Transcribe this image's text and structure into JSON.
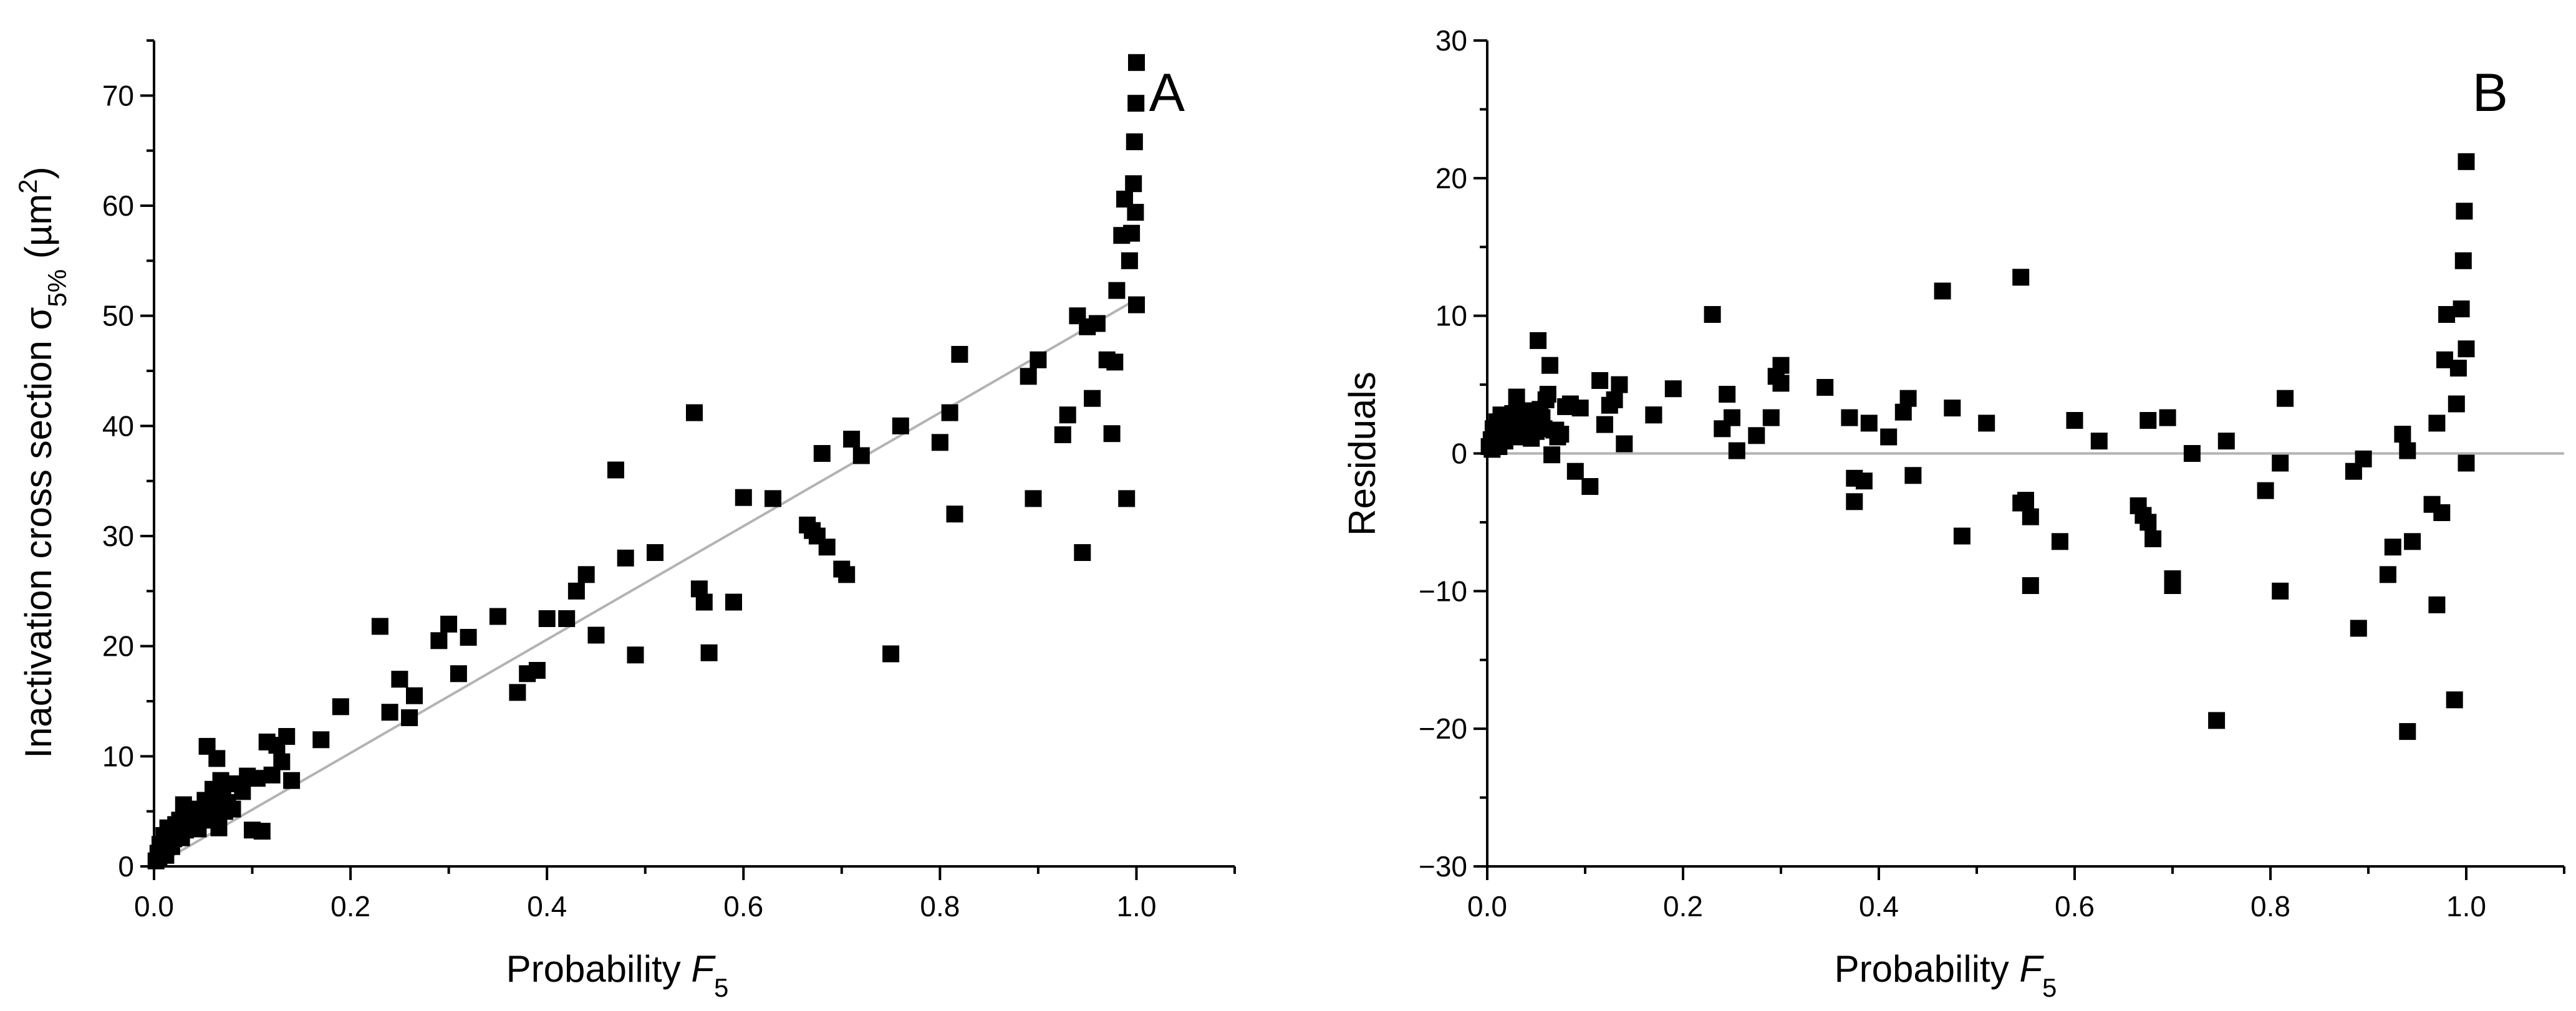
{
  "chart_data": [
    {
      "type": "scatter",
      "panel_label": "A",
      "ylabel": {
        "main": "Inactivation cross section σ",
        "sub": "5%",
        "unit_open": " (µm",
        "sup": "2",
        "unit_close": ")"
      },
      "xlabel": {
        "main": "Probability ",
        "italic": "F",
        "sub": "5"
      },
      "xlim": [
        0,
        1.1
      ],
      "ylim": [
        0,
        75
      ],
      "x_ticks": [
        0.0,
        0.2,
        0.4,
        0.6,
        0.8,
        1.0
      ],
      "x_tick_labels": [
        "0.0",
        "0.2",
        "0.4",
        "0.6",
        "0.8",
        "1.0"
      ],
      "y_ticks": [
        0,
        10,
        20,
        30,
        40,
        50,
        60,
        70
      ],
      "y_tick_labels": [
        "0",
        "10",
        "20",
        "30",
        "40",
        "50",
        "60",
        "70"
      ],
      "colors": {
        "marker": "#000000",
        "fit_line": "#b3b3b3",
        "axis": "#000000"
      },
      "fit_line": {
        "x": [
          0,
          1.0
        ],
        "y": [
          0,
          51.5
        ]
      },
      "series": [
        {
          "points": [
            [
              0.002,
              0.5
            ],
            [
              0.004,
              1.2
            ],
            [
              0.005,
              0.8
            ],
            [
              0.006,
              2.0
            ],
            [
              0.008,
              1.5
            ],
            [
              0.01,
              2.8
            ],
            [
              0.012,
              1.0
            ],
            [
              0.014,
              3.5
            ],
            [
              0.016,
              2.2
            ],
            [
              0.018,
              1.8
            ],
            [
              0.02,
              2.5
            ],
            [
              0.022,
              3.8
            ],
            [
              0.024,
              3.0
            ],
            [
              0.026,
              4.2
            ],
            [
              0.028,
              2.6
            ],
            [
              0.03,
              5.6
            ],
            [
              0.032,
              3.3
            ],
            [
              0.035,
              4.0
            ],
            [
              0.038,
              3.6
            ],
            [
              0.04,
              5.2
            ],
            [
              0.042,
              4.5
            ],
            [
              0.045,
              3.4
            ],
            [
              0.048,
              5.0
            ],
            [
              0.05,
              4.2
            ],
            [
              0.052,
              6.0
            ],
            [
              0.054,
              10.9
            ],
            [
              0.056,
              5.5
            ],
            [
              0.058,
              4.8
            ],
            [
              0.06,
              7.0
            ],
            [
              0.062,
              6.5
            ],
            [
              0.064,
              9.8
            ],
            [
              0.066,
              3.5
            ],
            [
              0.068,
              7.8
            ],
            [
              0.07,
              6.5
            ],
            [
              0.072,
              5.0
            ],
            [
              0.075,
              5.8
            ],
            [
              0.08,
              5.2
            ],
            [
              0.085,
              7.5
            ],
            [
              0.09,
              6.8
            ],
            [
              0.095,
              8.2
            ],
            [
              0.1,
              3.3
            ],
            [
              0.105,
              8.0
            ],
            [
              0.11,
              3.2
            ],
            [
              0.115,
              11.3
            ],
            [
              0.12,
              8.3
            ],
            [
              0.125,
              11.0
            ],
            [
              0.13,
              9.5
            ],
            [
              0.135,
              11.8
            ],
            [
              0.14,
              7.8
            ],
            [
              0.17,
              11.5
            ],
            [
              0.19,
              14.5
            ],
            [
              0.23,
              21.8
            ],
            [
              0.24,
              14.0
            ],
            [
              0.25,
              17.0
            ],
            [
              0.26,
              13.5
            ],
            [
              0.265,
              15.5
            ],
            [
              0.29,
              20.5
            ],
            [
              0.3,
              22.0
            ],
            [
              0.31,
              17.5
            ],
            [
              0.32,
              20.8
            ],
            [
              0.35,
              22.7
            ],
            [
              0.37,
              15.8
            ],
            [
              0.38,
              17.5
            ],
            [
              0.39,
              17.8
            ],
            [
              0.4,
              22.5
            ],
            [
              0.42,
              22.5
            ],
            [
              0.43,
              25.0
            ],
            [
              0.44,
              26.5
            ],
            [
              0.45,
              21.0
            ],
            [
              0.47,
              36.0
            ],
            [
              0.48,
              28.0
            ],
            [
              0.49,
              19.2
            ],
            [
              0.51,
              28.5
            ],
            [
              0.55,
              41.2
            ],
            [
              0.555,
              25.2
            ],
            [
              0.56,
              24.0
            ],
            [
              0.565,
              19.4
            ],
            [
              0.59,
              24.0
            ],
            [
              0.6,
              33.5
            ],
            [
              0.63,
              33.4
            ],
            [
              0.665,
              31.0
            ],
            [
              0.67,
              30.5
            ],
            [
              0.675,
              30.0
            ],
            [
              0.68,
              37.5
            ],
            [
              0.685,
              29.0
            ],
            [
              0.7,
              27.0
            ],
            [
              0.705,
              26.5
            ],
            [
              0.71,
              38.8
            ],
            [
              0.72,
              37.3
            ],
            [
              0.75,
              19.3
            ],
            [
              0.76,
              40.0
            ],
            [
              0.8,
              38.5
            ],
            [
              0.81,
              41.2
            ],
            [
              0.815,
              32.0
            ],
            [
              0.82,
              46.5
            ],
            [
              0.89,
              44.5
            ],
            [
              0.895,
              33.4
            ],
            [
              0.9,
              46.0
            ],
            [
              0.925,
              39.2
            ],
            [
              0.93,
              41.0
            ],
            [
              0.94,
              50.0
            ],
            [
              0.945,
              28.5
            ],
            [
              0.95,
              49.0
            ],
            [
              0.955,
              42.5
            ],
            [
              0.96,
              49.3
            ],
            [
              0.97,
              46.0
            ],
            [
              0.975,
              39.3
            ],
            [
              0.978,
              45.8
            ],
            [
              0.98,
              52.3
            ],
            [
              0.985,
              57.3
            ],
            [
              0.988,
              60.6
            ],
            [
              0.99,
              33.4
            ],
            [
              0.993,
              55.0
            ],
            [
              0.995,
              57.5
            ],
            [
              0.997,
              62.0
            ],
            [
              0.998,
              65.8
            ],
            [
              0.999,
              59.4
            ],
            [
              0.9995,
              69.3
            ],
            [
              1.0,
              73.0
            ],
            [
              1.0,
              51.0
            ]
          ]
        }
      ]
    },
    {
      "type": "scatter",
      "panel_label": "B",
      "ylabel": {
        "main": "Residuals"
      },
      "xlabel": {
        "main": "Probability ",
        "italic": "F",
        "sub": "5"
      },
      "xlim": [
        0,
        1.1
      ],
      "ylim": [
        -30,
        30
      ],
      "x_ticks": [
        0.0,
        0.2,
        0.4,
        0.6,
        0.8,
        1.0
      ],
      "x_tick_labels": [
        "0.0",
        "0.2",
        "0.4",
        "0.6",
        "0.8",
        "1.0"
      ],
      "y_ticks": [
        -30,
        -20,
        -10,
        0,
        10,
        20,
        30
      ],
      "y_tick_labels": [
        "−30",
        "−20",
        "−10",
        "0",
        "10",
        "20",
        "30"
      ],
      "colors": {
        "marker": "#000000",
        "zero_line": "#b3b3b3",
        "axis": "#000000"
      },
      "zero_line": {
        "y": 0
      },
      "series": [
        {
          "points": [
            [
              0.002,
              0.5
            ],
            [
              0.004,
              1.0
            ],
            [
              0.005,
              0.3
            ],
            [
              0.006,
              1.8
            ],
            [
              0.008,
              1.2
            ],
            [
              0.01,
              2.3
            ],
            [
              0.012,
              0.5
            ],
            [
              0.014,
              2.8
            ],
            [
              0.016,
              1.5
            ],
            [
              0.018,
              0.9
            ],
            [
              0.02,
              1.5
            ],
            [
              0.022,
              2.7
            ],
            [
              0.024,
              1.8
            ],
            [
              0.026,
              2.9
            ],
            [
              0.028,
              1.2
            ],
            [
              0.03,
              4.1
            ],
            [
              0.032,
              1.6
            ],
            [
              0.035,
              2.2
            ],
            [
              0.038,
              1.6
            ],
            [
              0.04,
              3.1
            ],
            [
              0.042,
              2.3
            ],
            [
              0.045,
              1.1
            ],
            [
              0.048,
              2.5
            ],
            [
              0.05,
              1.6
            ],
            [
              0.052,
              8.2
            ],
            [
              0.054,
              3.2
            ],
            [
              0.056,
              2.6
            ],
            [
              0.058,
              1.8
            ],
            [
              0.06,
              3.9
            ],
            [
              0.062,
              4.3
            ],
            [
              0.064,
              6.4
            ],
            [
              0.066,
              -0.1
            ],
            [
              0.068,
              1.7
            ],
            [
              0.07,
              1.7
            ],
            [
              0.072,
              1.2
            ],
            [
              0.075,
              1.4
            ],
            [
              0.08,
              3.4
            ],
            [
              0.085,
              3.6
            ],
            [
              0.09,
              -1.3
            ],
            [
              0.095,
              3.3
            ],
            [
              0.105,
              -2.4
            ],
            [
              0.115,
              5.3
            ],
            [
              0.12,
              2.1
            ],
            [
              0.125,
              3.5
            ],
            [
              0.13,
              3.9
            ],
            [
              0.135,
              5.0
            ],
            [
              0.14,
              0.7
            ],
            [
              0.17,
              2.8
            ],
            [
              0.17,
              2.8
            ],
            [
              0.19,
              4.7
            ],
            [
              0.23,
              10.1
            ],
            [
              0.24,
              1.8
            ],
            [
              0.245,
              4.3
            ],
            [
              0.25,
              2.6
            ],
            [
              0.255,
              0.2
            ],
            [
              0.275,
              1.3
            ],
            [
              0.29,
              2.6
            ],
            [
              0.295,
              5.6
            ],
            [
              0.3,
              6.4
            ],
            [
              0.3,
              5.1
            ],
            [
              0.345,
              4.8
            ],
            [
              0.37,
              2.6
            ],
            [
              0.375,
              -1.8
            ],
            [
              0.375,
              -3.5
            ],
            [
              0.385,
              -2.0
            ],
            [
              0.39,
              2.2
            ],
            [
              0.41,
              1.2
            ],
            [
              0.425,
              3.0
            ],
            [
              0.43,
              4.0
            ],
            [
              0.435,
              -1.6
            ],
            [
              0.465,
              11.8
            ],
            [
              0.475,
              3.3
            ],
            [
              0.485,
              -6.0
            ],
            [
              0.51,
              2.2
            ],
            [
              0.545,
              12.8
            ],
            [
              0.545,
              -3.6
            ],
            [
              0.55,
              -3.4
            ],
            [
              0.555,
              -4.6
            ],
            [
              0.555,
              -9.6
            ],
            [
              0.585,
              -6.4
            ],
            [
              0.6,
              2.4
            ],
            [
              0.625,
              0.9
            ],
            [
              0.665,
              -3.8
            ],
            [
              0.67,
              -4.5
            ],
            [
              0.675,
              -5.0
            ],
            [
              0.675,
              2.4
            ],
            [
              0.68,
              -6.2
            ],
            [
              0.695,
              2.6
            ],
            [
              0.7,
              -9.6
            ],
            [
              0.7,
              -9.1
            ],
            [
              0.72,
              0.0
            ],
            [
              0.745,
              -19.4
            ],
            [
              0.755,
              0.9
            ],
            [
              0.795,
              -2.7
            ],
            [
              0.81,
              -10.0
            ],
            [
              0.81,
              -0.7
            ],
            [
              0.815,
              4.0
            ],
            [
              0.885,
              -1.3
            ],
            [
              0.89,
              -12.7
            ],
            [
              0.895,
              -0.4
            ],
            [
              0.92,
              -8.8
            ],
            [
              0.925,
              -6.8
            ],
            [
              0.935,
              1.4
            ],
            [
              0.94,
              -20.2
            ],
            [
              0.94,
              0.2
            ],
            [
              0.945,
              -6.4
            ],
            [
              0.965,
              -3.7
            ],
            [
              0.97,
              -11.0
            ],
            [
              0.97,
              2.2
            ],
            [
              0.975,
              -4.3
            ],
            [
              0.978,
              6.8
            ],
            [
              0.98,
              10.1
            ],
            [
              0.988,
              -17.9
            ],
            [
              0.99,
              3.6
            ],
            [
              0.992,
              6.2
            ],
            [
              0.995,
              10.5
            ],
            [
              0.997,
              14.0
            ],
            [
              0.998,
              17.6
            ],
            [
              1.0,
              21.2
            ],
            [
              1.0,
              -0.7
            ],
            [
              1.0,
              7.6
            ]
          ]
        }
      ]
    }
  ]
}
